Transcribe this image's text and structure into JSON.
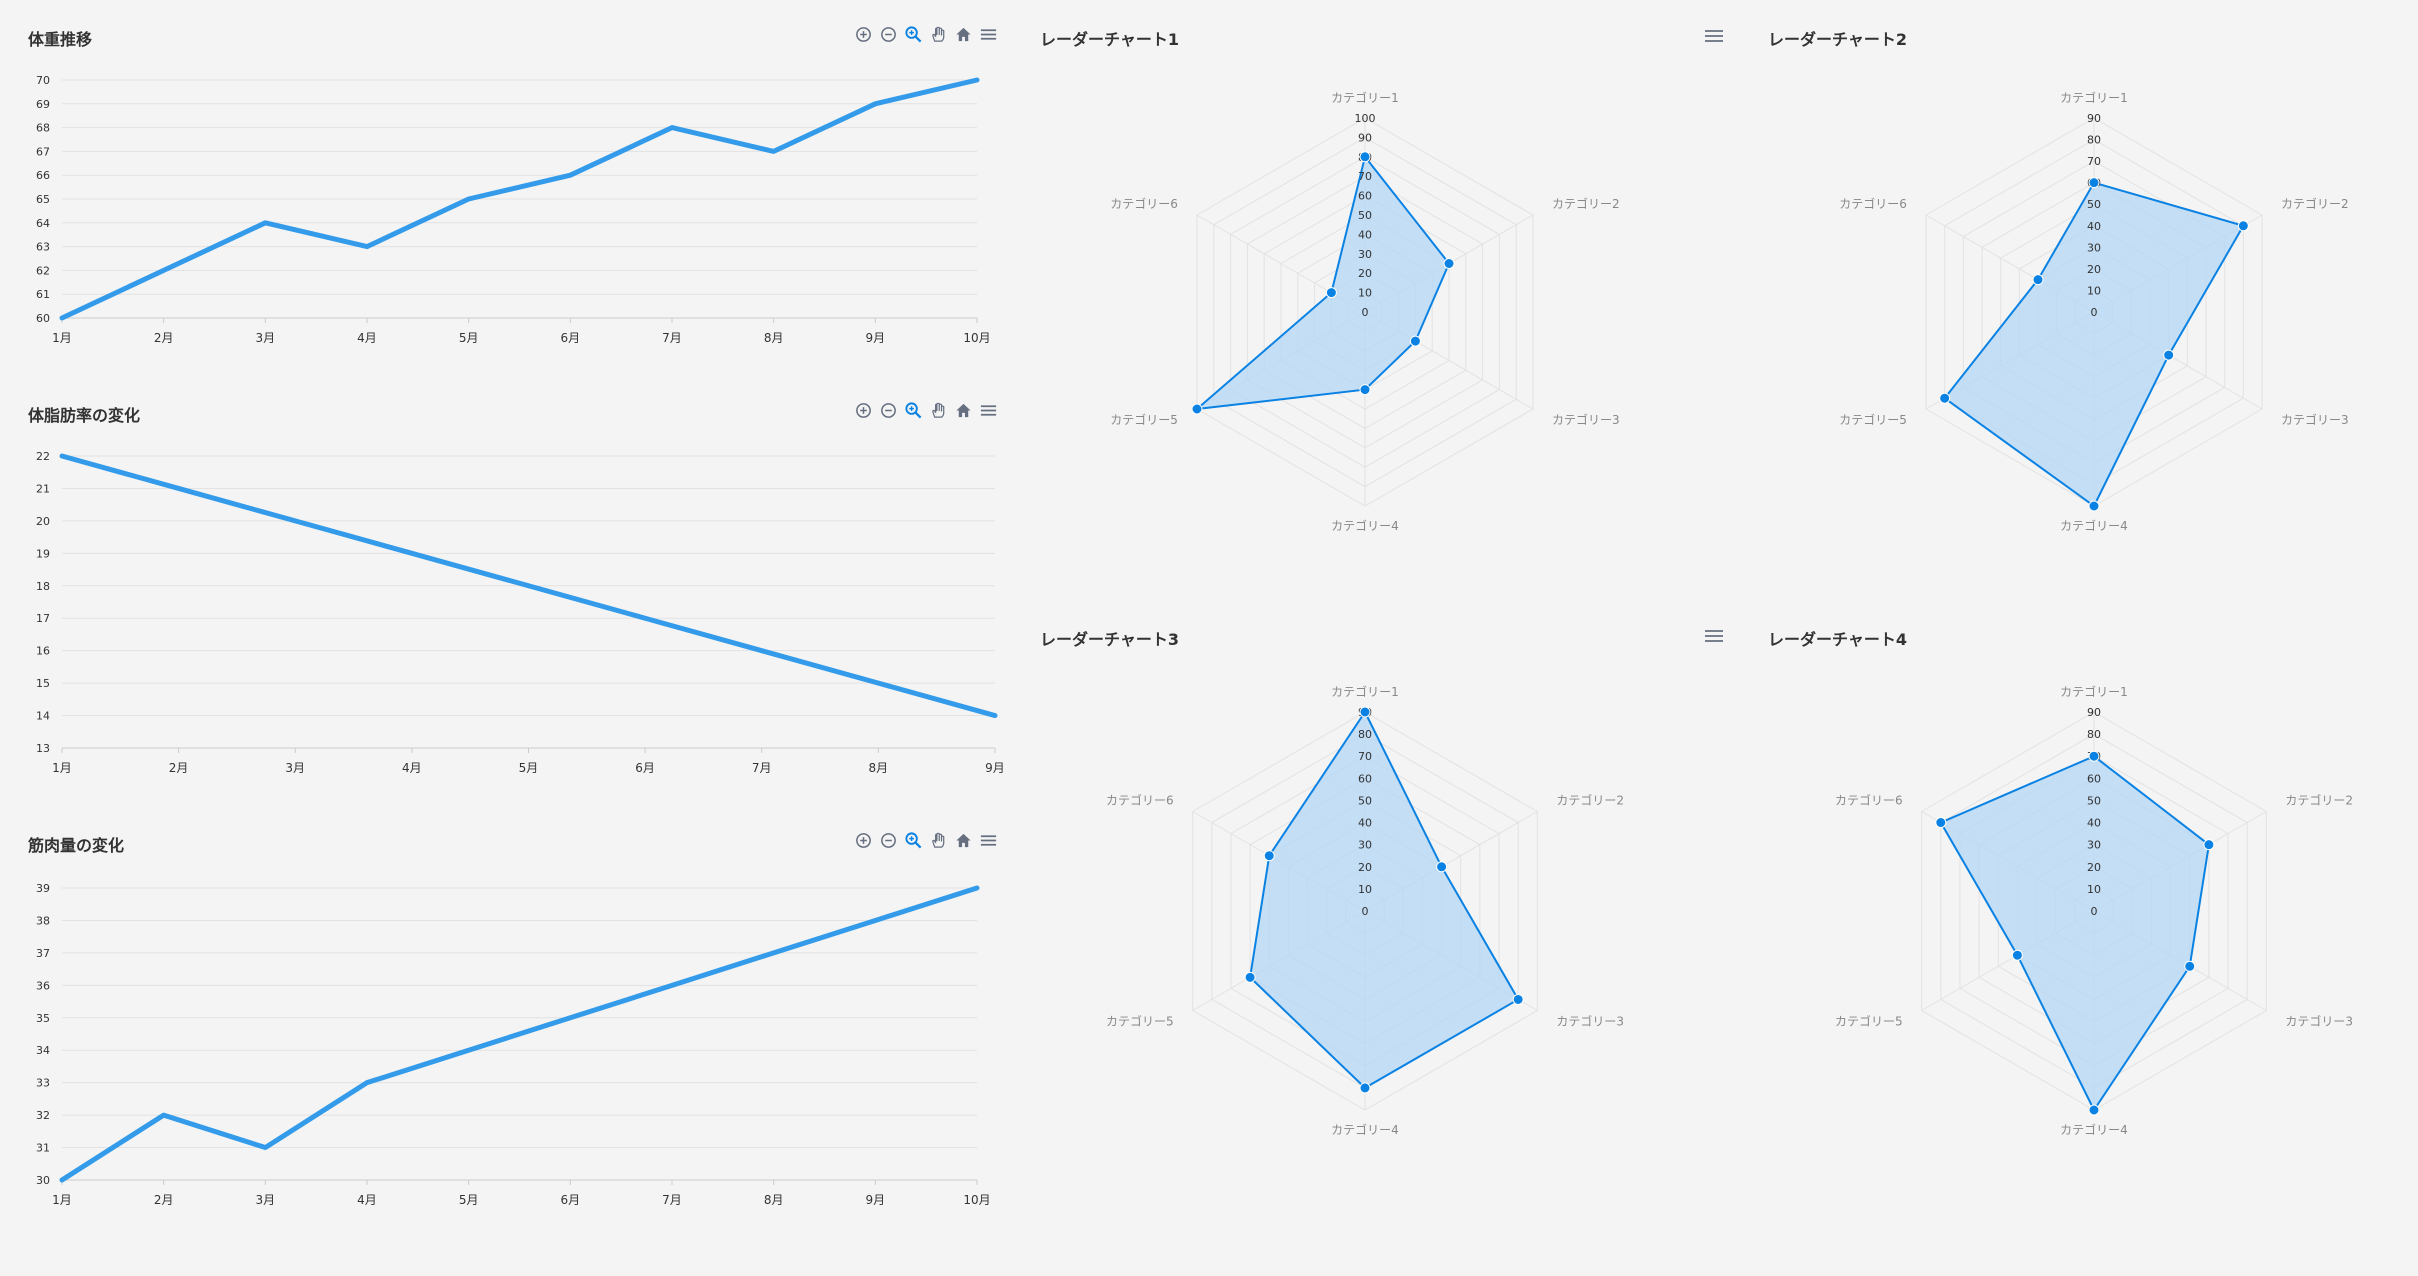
{
  "colors": {
    "line": "#339bea",
    "radar_stroke": "#0a82e3",
    "radar_fill": "#b3d7f5",
    "grid": "#e2e2e2",
    "axis_text": "#333333",
    "radar_label": "#888888",
    "icon": "#666f80",
    "icon_active": "#0a82e3"
  },
  "toolbar_icons": [
    "zoom-in-icon",
    "zoom-out-icon",
    "zoom-select-icon",
    "pan-icon",
    "home-icon",
    "menu-icon"
  ],
  "chart_data": [
    {
      "type": "line",
      "title": "体重推移",
      "categories": [
        "1月",
        "2月",
        "3月",
        "4月",
        "5月",
        "6月",
        "7月",
        "8月",
        "9月",
        "10月"
      ],
      "series": [
        {
          "values": [
            60,
            62,
            64,
            63,
            65,
            66,
            68,
            67,
            69,
            70
          ]
        }
      ],
      "yticks": [
        "60",
        "61",
        "62",
        "63",
        "64",
        "65",
        "66",
        "67",
        "68",
        "69",
        "70"
      ],
      "ylim": [
        60,
        70
      ],
      "grid": true
    },
    {
      "type": "line",
      "title": "体脂肪率の変化",
      "categories": [
        "1月",
        "2月",
        "3月",
        "4月",
        "5月",
        "6月",
        "7月",
        "8月",
        "9月"
      ],
      "series": [
        {
          "values": [
            22,
            21,
            20,
            19,
            18,
            17,
            16,
            15,
            14
          ]
        }
      ],
      "yticks": [
        "13",
        "14",
        "15",
        "16",
        "17",
        "18",
        "19",
        "20",
        "21",
        "22"
      ],
      "ylim": [
        13,
        22
      ],
      "grid": true
    },
    {
      "type": "line",
      "title": "筋肉量の変化",
      "categories": [
        "1月",
        "2月",
        "3月",
        "4月",
        "5月",
        "6月",
        "7月",
        "8月",
        "9月",
        "10月"
      ],
      "series": [
        {
          "values": [
            30,
            32,
            31,
            33,
            34,
            35,
            36,
            37,
            38,
            39
          ]
        }
      ],
      "yticks": [
        "30",
        "31",
        "32",
        "33",
        "34",
        "35",
        "36",
        "37",
        "38",
        "39"
      ],
      "ylim": [
        30,
        39
      ],
      "grid": true
    },
    {
      "type": "radar",
      "title": "レーダーチャート1",
      "categories": [
        "カテゴリー1",
        "カテゴリー2",
        "カテゴリー3",
        "カテゴリー4",
        "カテゴリー5",
        "カテゴリー6"
      ],
      "values": [
        80,
        50,
        30,
        40,
        100,
        20
      ],
      "rticks": [
        "0",
        "10",
        "20",
        "30",
        "40",
        "50",
        "60",
        "70",
        "80",
        "90",
        "100"
      ],
      "rmax": 100
    },
    {
      "type": "radar",
      "title": "レーダーチャート2",
      "categories": [
        "カテゴリー1",
        "カテゴリー2",
        "カテゴリー3",
        "カテゴリー4",
        "カテゴリー5",
        "カテゴリー6"
      ],
      "values": [
        60,
        80,
        40,
        90,
        80,
        30
      ],
      "rticks": [
        "0",
        "10",
        "20",
        "30",
        "40",
        "50",
        "60",
        "70",
        "80",
        "90"
      ],
      "rmax": 90
    },
    {
      "type": "radar",
      "title": "レーダーチャート3",
      "categories": [
        "カテゴリー1",
        "カテゴリー2",
        "カテゴリー3",
        "カテゴリー4",
        "カテゴリー5",
        "カテゴリー6"
      ],
      "values": [
        90,
        40,
        80,
        80,
        60,
        50
      ],
      "rticks": [
        "0",
        "10",
        "20",
        "30",
        "40",
        "50",
        "60",
        "70",
        "80",
        "90"
      ],
      "rmax": 90
    },
    {
      "type": "radar",
      "title": "レーダーチャート4",
      "categories": [
        "カテゴリー1",
        "カテゴリー2",
        "カテゴリー3",
        "カテゴリー4",
        "カテゴリー5",
        "カテゴリー6"
      ],
      "values": [
        70,
        60,
        50,
        90,
        40,
        80
      ],
      "rticks": [
        "0",
        "10",
        "20",
        "30",
        "40",
        "50",
        "60",
        "70",
        "80",
        "90"
      ],
      "rmax": 90
    }
  ]
}
